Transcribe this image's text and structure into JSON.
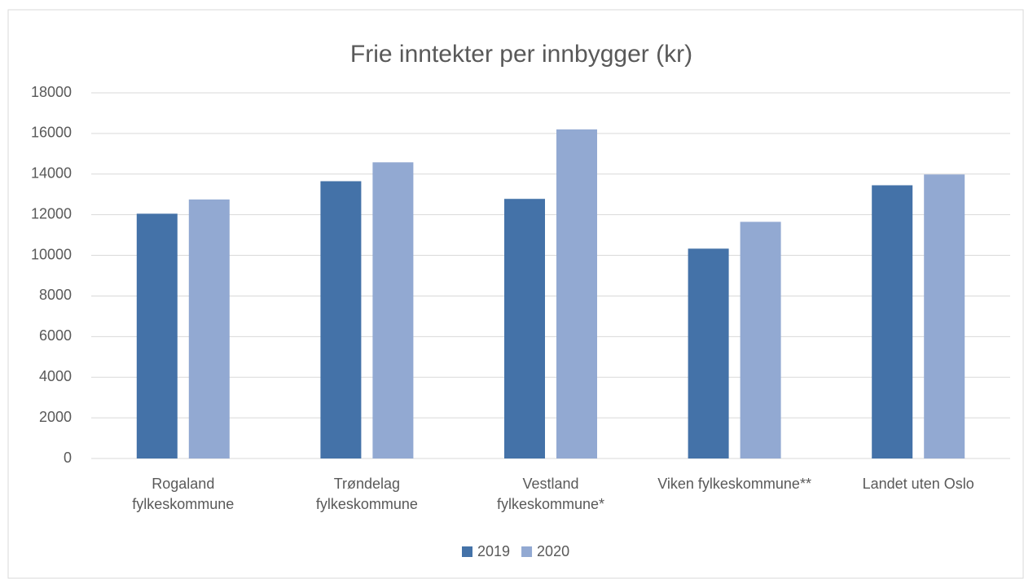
{
  "chart_data": {
    "type": "bar",
    "title": "Frie inntekter per innbygger (kr)",
    "categories": [
      "Rogaland fylkeskommune",
      "Trøndelag fylkeskommune",
      "Vestland fylkeskommune*",
      "Viken fylkeskommune**",
      "Landet uten Oslo"
    ],
    "series": [
      {
        "name": "2019",
        "color": "#4472a8",
        "values": [
          12050,
          13650,
          12780,
          10330,
          13450
        ]
      },
      {
        "name": "2020",
        "color": "#92a9d2",
        "values": [
          12750,
          14580,
          16200,
          11650,
          13980
        ]
      }
    ],
    "ylim": [
      0,
      18000
    ],
    "yticks": [
      0,
      2000,
      4000,
      6000,
      8000,
      10000,
      12000,
      14000,
      16000,
      18000
    ],
    "grid": true,
    "legend": "bottom"
  }
}
